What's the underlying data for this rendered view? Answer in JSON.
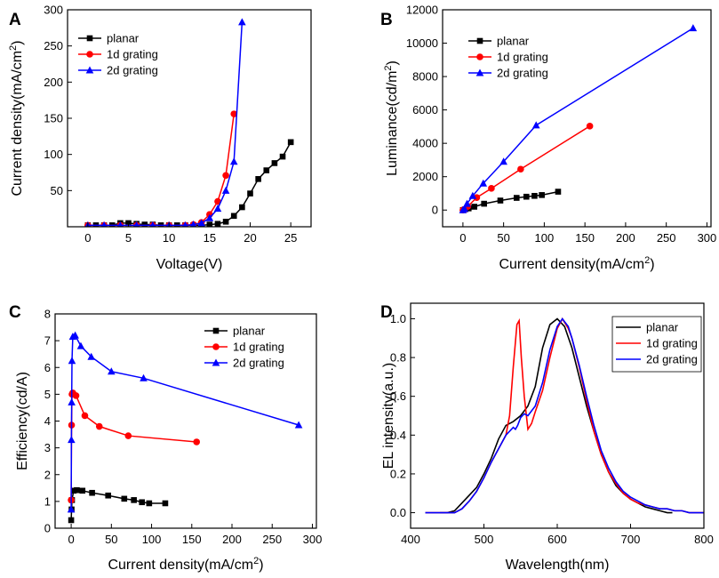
{
  "chart_data": [
    {
      "id": "A",
      "panel_label": "A",
      "type": "line",
      "xlabel": "Voltage(V)",
      "ylabel": "Current density(mA/cm²)",
      "xlim": [
        -2.5,
        27.5
      ],
      "ylim": [
        0,
        300
      ],
      "xticks": [
        0,
        5,
        10,
        15,
        20,
        25
      ],
      "yticks": [
        50,
        100,
        150,
        200,
        250,
        300
      ],
      "legend_position": "top-left",
      "series": [
        {
          "name": "planar",
          "color": "#000000",
          "marker": "square",
          "x": [
            0,
            1,
            2,
            3,
            4,
            5,
            6,
            7,
            8,
            9,
            10,
            11,
            12,
            13,
            14,
            15,
            16,
            17,
            18,
            19,
            20,
            21,
            22,
            23,
            24,
            25
          ],
          "y": [
            2,
            2,
            2,
            2,
            5,
            5,
            4,
            3,
            3,
            2,
            2,
            2,
            2,
            2,
            2,
            3,
            4,
            7,
            15,
            27,
            46,
            66,
            78,
            88,
            97,
            117
          ]
        },
        {
          "name": "1d grating",
          "color": "#ff0000",
          "marker": "circle",
          "x": [
            0,
            2,
            4,
            6,
            8,
            10,
            12,
            13,
            14,
            15,
            16,
            17,
            18
          ],
          "y": [
            2,
            2,
            2,
            2,
            2,
            2,
            2,
            3,
            6,
            17,
            35,
            71,
            156
          ]
        },
        {
          "name": "2d grating",
          "color": "#0000ff",
          "marker": "triangle",
          "x": [
            0,
            2,
            4,
            6,
            8,
            10,
            12,
            13,
            14,
            15,
            16,
            17,
            18,
            19
          ],
          "y": [
            2,
            2,
            2,
            2,
            2,
            2,
            2,
            3,
            5,
            12,
            25,
            50,
            90,
            283
          ]
        }
      ]
    },
    {
      "id": "B",
      "panel_label": "B",
      "type": "line",
      "xlabel": "Current density(mA/cm²)",
      "ylabel": "Luminance(cd/m²)",
      "xlim": [
        -25,
        305
      ],
      "ylim": [
        -1000,
        12000
      ],
      "xticks": [
        0,
        50,
        100,
        150,
        200,
        250,
        300
      ],
      "yticks": [
        0,
        2000,
        4000,
        6000,
        8000,
        10000,
        12000
      ],
      "legend_position": "top-left",
      "series": [
        {
          "name": "planar",
          "color": "#000000",
          "marker": "square",
          "x": [
            0,
            3,
            7,
            14,
            26,
            46,
            66,
            78,
            88,
            97,
            117
          ],
          "y": [
            0,
            50,
            100,
            200,
            380,
            570,
            730,
            800,
            850,
            900,
            1100
          ]
        },
        {
          "name": "1d grating",
          "color": "#ff0000",
          "marker": "circle",
          "x": [
            0,
            2,
            6,
            17,
            35,
            71,
            156
          ],
          "y": [
            0,
            30,
            220,
            750,
            1300,
            2450,
            5030
          ]
        },
        {
          "name": "2d grating",
          "color": "#0000ff",
          "marker": "triangle",
          "x": [
            0,
            2,
            5,
            12,
            25,
            50,
            90,
            283
          ],
          "y": [
            0,
            80,
            380,
            850,
            1600,
            2900,
            5080,
            10900
          ]
        }
      ]
    },
    {
      "id": "C",
      "panel_label": "C",
      "type": "line",
      "xlabel": "Current density(mA/cm²)",
      "ylabel": "Efficiency(cd/A)",
      "xlim": [
        -20,
        305
      ],
      "ylim": [
        0,
        8
      ],
      "xticks": [
        0,
        50,
        100,
        150,
        200,
        250,
        300
      ],
      "yticks": [
        0,
        1,
        2,
        3,
        4,
        5,
        6,
        7,
        8
      ],
      "legend_position": "top-right",
      "series": [
        {
          "name": "planar",
          "color": "#000000",
          "marker": "square",
          "x": [
            0,
            0.5,
            1,
            3,
            7,
            14,
            26,
            46,
            66,
            78,
            88,
            97,
            117
          ],
          "y": [
            0.3,
            0.7,
            1.05,
            1.4,
            1.42,
            1.4,
            1.32,
            1.22,
            1.1,
            1.05,
            0.97,
            0.93,
            0.93
          ]
        },
        {
          "name": "1d grating",
          "color": "#ff0000",
          "marker": "circle",
          "x": [
            0,
            0.5,
            1,
            2,
            6,
            17,
            35,
            71,
            156
          ],
          "y": [
            1.05,
            3.85,
            5.0,
            5.05,
            4.95,
            4.2,
            3.8,
            3.45,
            3.22
          ]
        },
        {
          "name": "2d grating",
          "color": "#0000ff",
          "marker": "triangle",
          "x": [
            0,
            0.3,
            0.6,
            1,
            2,
            5,
            12,
            25,
            50,
            90,
            283
          ],
          "y": [
            0.7,
            3.3,
            4.7,
            6.25,
            7.15,
            7.2,
            6.8,
            6.4,
            5.85,
            5.6,
            3.85
          ]
        }
      ]
    },
    {
      "id": "D",
      "panel_label": "D",
      "type": "line",
      "xlabel": "Wavelength(nm)",
      "ylabel": "EL intensity(a.u.)",
      "xlim": [
        400,
        800
      ],
      "ylim": [
        -0.08,
        1.08
      ],
      "xticks": [
        400,
        500,
        600,
        700,
        800
      ],
      "yticks": [
        0.0,
        0.2,
        0.4,
        0.6,
        0.8,
        1.0
      ],
      "legend_position": "top-right",
      "series": [
        {
          "name": "planar",
          "color": "#000000",
          "marker": "none",
          "x": [
            440,
            450,
            460,
            470,
            480,
            490,
            500,
            510,
            520,
            530,
            540,
            550,
            560,
            570,
            580,
            590,
            600,
            610,
            620,
            630,
            640,
            650,
            660,
            670,
            680,
            690,
            700,
            710,
            720,
            730,
            740,
            750,
            757
          ],
          "y": [
            0.0,
            0.0,
            0.01,
            0.05,
            0.09,
            0.13,
            0.2,
            0.28,
            0.38,
            0.45,
            0.47,
            0.5,
            0.55,
            0.65,
            0.85,
            0.97,
            1.0,
            0.96,
            0.85,
            0.7,
            0.55,
            0.42,
            0.3,
            0.21,
            0.14,
            0.1,
            0.07,
            0.05,
            0.03,
            0.02,
            0.01,
            0.0,
            0.0
          ]
        },
        {
          "name": "1d grating",
          "color": "#ff0000",
          "marker": "none",
          "x": [
            420,
            440,
            450,
            460,
            470,
            480,
            490,
            500,
            510,
            520,
            530,
            535,
            540,
            545,
            548,
            551,
            555,
            560,
            565,
            570,
            580,
            590,
            600,
            607,
            615,
            620,
            630,
            640,
            650,
            660,
            670,
            680,
            690,
            700,
            710,
            720,
            730,
            740,
            750,
            760,
            770,
            780,
            790,
            800
          ],
          "y": [
            0.0,
            0.0,
            0.0,
            0.0,
            0.02,
            0.06,
            0.11,
            0.18,
            0.26,
            0.33,
            0.4,
            0.5,
            0.75,
            0.97,
            0.99,
            0.8,
            0.6,
            0.43,
            0.46,
            0.52,
            0.63,
            0.8,
            0.95,
            1.0,
            0.95,
            0.9,
            0.75,
            0.58,
            0.42,
            0.3,
            0.21,
            0.15,
            0.1,
            0.07,
            0.05,
            0.04,
            0.03,
            0.02,
            0.02,
            0.01,
            0.01,
            0.0,
            0.0,
            0.0
          ]
        },
        {
          "name": "2d grating",
          "color": "#0000ff",
          "marker": "none",
          "x": [
            420,
            440,
            450,
            460,
            470,
            480,
            490,
            500,
            510,
            520,
            530,
            540,
            543,
            546,
            550,
            555,
            560,
            570,
            580,
            590,
            600,
            607,
            615,
            620,
            630,
            640,
            650,
            660,
            670,
            680,
            690,
            700,
            710,
            720,
            730,
            740,
            750,
            760,
            770,
            780,
            790,
            800
          ],
          "y": [
            0.0,
            0.0,
            0.0,
            0.0,
            0.02,
            0.06,
            0.11,
            0.18,
            0.26,
            0.33,
            0.4,
            0.44,
            0.43,
            0.45,
            0.49,
            0.51,
            0.5,
            0.55,
            0.67,
            0.84,
            0.96,
            1.0,
            0.96,
            0.9,
            0.76,
            0.6,
            0.45,
            0.32,
            0.23,
            0.16,
            0.11,
            0.08,
            0.06,
            0.04,
            0.03,
            0.02,
            0.02,
            0.01,
            0.01,
            0.0,
            0.0,
            0.0
          ]
        }
      ]
    }
  ]
}
